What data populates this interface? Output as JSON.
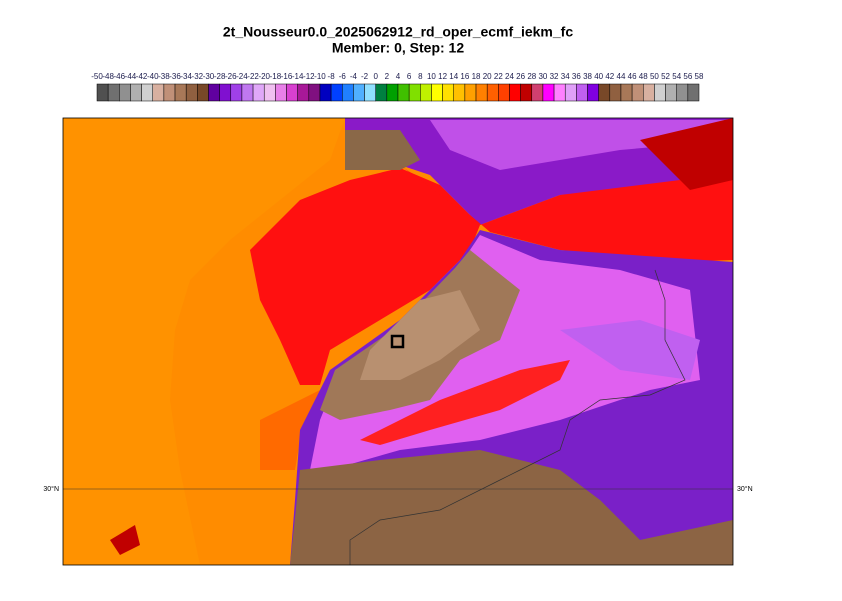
{
  "title": "2t_Nousseur0.0_2025062912_rd_oper_ecmf_iekm_fc",
  "subtitle": "Member: 0, Step: 12",
  "colorbar": {
    "ticks": [
      -50,
      -48,
      -46,
      -44,
      -42,
      -40,
      -38,
      -36,
      -34,
      -32,
      -30,
      -28,
      -26,
      -24,
      -22,
      -20,
      -18,
      -16,
      -14,
      -12,
      -10,
      -8,
      -6,
      -4,
      -2,
      0,
      2,
      4,
      6,
      8,
      10,
      12,
      14,
      16,
      18,
      20,
      22,
      24,
      26,
      28,
      30,
      32,
      34,
      36,
      38,
      40,
      42,
      44,
      46,
      48,
      50,
      52,
      54,
      56,
      58
    ],
    "colors": [
      "#505050",
      "#707070",
      "#909090",
      "#b0b0b0",
      "#d0d0d0",
      "#d8b0a0",
      "#c09078",
      "#a87858",
      "#906040",
      "#784828",
      "#6000a0",
      "#8010d0",
      "#a040e8",
      "#c078f0",
      "#e0a8f8",
      "#f0c0f0",
      "#e880e8",
      "#d840d0",
      "#a81898",
      "#801080",
      "#0000c0",
      "#0040ff",
      "#2080ff",
      "#50b0ff",
      "#90e0ff",
      "#008040",
      "#00a000",
      "#40c000",
      "#80e000",
      "#c0f000",
      "#ffff00",
      "#ffe000",
      "#ffc000",
      "#ffa000",
      "#ff8000",
      "#ff6000",
      "#ff4000",
      "#ff0000",
      "#c00000",
      "#d04070",
      "#ff00ff",
      "#ff80ff",
      "#e0a0f8",
      "#c060f0",
      "#8000e0",
      "#784828",
      "#906040",
      "#a87858",
      "#c09078",
      "#d8b0a0",
      "#d0d0d0",
      "#b0b0b0",
      "#909090",
      "#707070"
    ]
  },
  "map": {
    "lat_label": "30°N"
  }
}
